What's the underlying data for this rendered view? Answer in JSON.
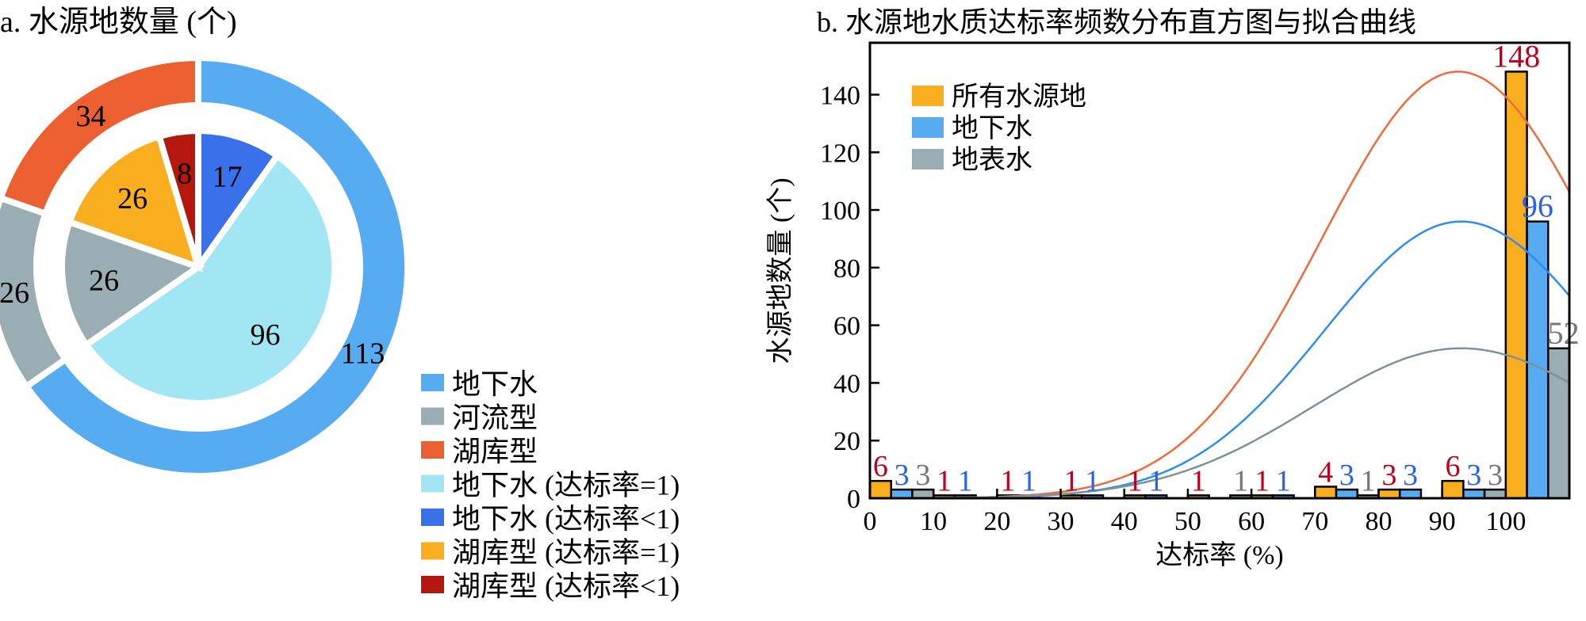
{
  "chart_data": [
    {
      "type": "pie",
      "title": "a. 水源地数量 (个)",
      "outer_ring": [
        {
          "label": "地下水",
          "value": 113,
          "color": "#56abf1"
        },
        {
          "label": "河流型",
          "value": 26,
          "color": "#99adb2"
        },
        {
          "label": "湖库型",
          "value": 34,
          "color": "#ec5f30"
        }
      ],
      "inner_pie": [
        {
          "label": "地下水 (达标率<1)",
          "value": 17,
          "color": "#3a70ea"
        },
        {
          "label": "地下水 (达标率=1)",
          "value": 96,
          "color": "#a3e6f3"
        },
        {
          "label": "河流型",
          "value": 26,
          "color": "#99adb2"
        },
        {
          "label": "湖库型 (达标率=1)",
          "value": 26,
          "color": "#f8ae1f"
        },
        {
          "label": "湖库型 (达标率<1)",
          "value": 8,
          "color": "#b3170d"
        }
      ],
      "legend": [
        {
          "label": "地下水",
          "color": "#56abf1"
        },
        {
          "label": "河流型",
          "color": "#99adb2"
        },
        {
          "label": "湖库型",
          "color": "#ec5f30"
        },
        {
          "label": "地下水 (达标率=1)",
          "color": "#a3e6f3"
        },
        {
          "label": "地下水 (达标率<1)",
          "color": "#3a70ea"
        },
        {
          "label": "湖库型 (达标率=1)",
          "color": "#f8ae1f"
        },
        {
          "label": "湖库型 (达标率<1)",
          "color": "#b3170d"
        }
      ],
      "legend_position": "bottom-right"
    },
    {
      "type": "bar",
      "title": "b. 水源地水质达标率频数分布直方图与拟合曲线",
      "xlabel": "达标率 (%)",
      "ylabel": "水源地数量 (个)",
      "xlim": [
        0,
        110
      ],
      "ylim": [
        0,
        158
      ],
      "xticks": [
        "0",
        "10",
        "20",
        "30",
        "40",
        "50",
        "60",
        "70",
        "80",
        "90",
        "100"
      ],
      "yticks": [
        "0",
        "20",
        "40",
        "60",
        "80",
        "100",
        "120",
        "140"
      ],
      "bins": [
        0,
        10,
        20,
        30,
        40,
        50,
        60,
        70,
        80,
        90,
        100
      ],
      "bin_width": 10,
      "legend_position": "top-left",
      "series": [
        {
          "name": "所有水源地",
          "color": "#f8ae1f",
          "label_color": "#c0001a",
          "curve_color": "#f26a3a",
          "values": [
            6,
            1,
            1,
            1,
            1,
            1,
            1,
            4,
            3,
            6,
            148
          ],
          "fit": {
            "mean": 92.5,
            "peak": 148,
            "sd": 21.5
          }
        },
        {
          "name": "地下水",
          "color": "#56abf1",
          "label_color": "#2a62f0",
          "curve_color": "#2f8cf5",
          "values": [
            3,
            1,
            1,
            1,
            1,
            0,
            1,
            3,
            3,
            3,
            96
          ],
          "fit": {
            "mean": 93,
            "peak": 96,
            "sd": 21.5
          }
        },
        {
          "name": "地表水",
          "color": "#99adb2",
          "label_color": "#777777",
          "curve_color": "#7c9399",
          "values": [
            3,
            0,
            0,
            0,
            0,
            1,
            0,
            1,
            0,
            3,
            52
          ],
          "fit": {
            "mean": 93,
            "peak": 52,
            "sd": 23.5
          }
        }
      ],
      "grid": false
    }
  ]
}
